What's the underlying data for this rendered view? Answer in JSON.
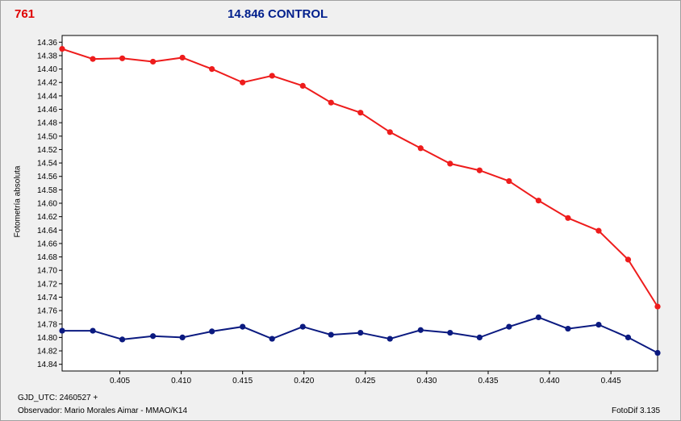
{
  "header": {
    "star_id": "761",
    "title": "14.846 CONTROL"
  },
  "footer": {
    "gjd": "GJD_UTC: 2460527 +",
    "observer": "Observador: Mario Morales Aimar - MMAO/K14",
    "software": "FotoDif 3.135"
  },
  "chart_data": {
    "type": "line",
    "title": "14.846 CONTROL",
    "xlabel": "",
    "ylabel": "Fotometría absoluta",
    "xlim": [
      0.4003,
      0.4488
    ],
    "ylim": [
      14.35,
      14.85
    ],
    "y_inverted": true,
    "grid": false,
    "legend": "none",
    "x_ticks": [
      "0.405",
      "0.410",
      "0.415",
      "0.420",
      "0.425",
      "0.430",
      "0.435",
      "0.440",
      "0.445"
    ],
    "y_ticks": [
      "14.36",
      "14.38",
      "14.40",
      "14.42",
      "14.44",
      "14.46",
      "14.48",
      "14.50",
      "14.52",
      "14.54",
      "14.56",
      "14.58",
      "14.60",
      "14.62",
      "14.64",
      "14.66",
      "14.68",
      "14.70",
      "14.72",
      "14.74",
      "14.76",
      "14.78",
      "14.80",
      "14.82",
      "14.84"
    ],
    "x": [
      0.4003,
      0.4028,
      0.4052,
      0.4077,
      0.4101,
      0.4125,
      0.415,
      0.4174,
      0.4199,
      0.4222,
      0.4246,
      0.427,
      0.4295,
      0.4319,
      0.4343,
      0.4367,
      0.4391,
      0.4415,
      0.444,
      0.4464,
      0.4488
    ],
    "series": [
      {
        "color": "#ee1c1c",
        "values": [
          14.37,
          14.385,
          14.384,
          14.389,
          14.383,
          14.4,
          14.42,
          14.41,
          14.425,
          14.45,
          14.465,
          14.494,
          14.518,
          14.541,
          14.551,
          14.567,
          14.596,
          14.622,
          14.641,
          14.684,
          14.754
        ]
      },
      {
        "color": "#0b1a80",
        "values": [
          14.79,
          14.79,
          14.803,
          14.798,
          14.8,
          14.791,
          14.784,
          14.802,
          14.784,
          14.796,
          14.793,
          14.802,
          14.789,
          14.793,
          14.8,
          14.784,
          14.77,
          14.787,
          14.781,
          14.8,
          14.823
        ]
      }
    ]
  }
}
